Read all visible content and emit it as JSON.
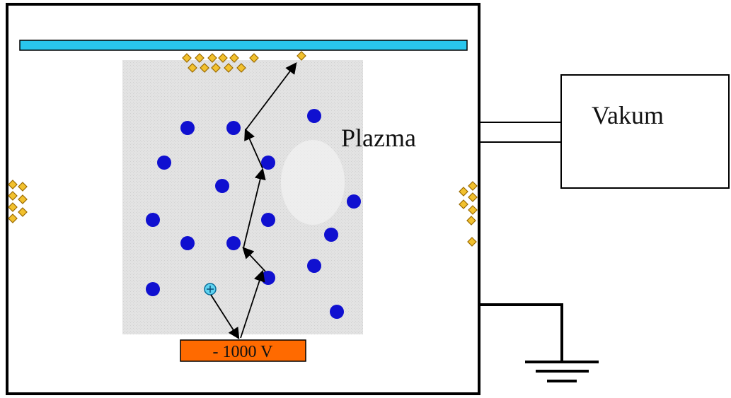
{
  "labels": {
    "plasma": "Plazma",
    "vacuum": "Vakum",
    "cathode_voltage": "- 1000 V"
  },
  "colors": {
    "chamber_border": "#000000",
    "substrate": "#29c6ee",
    "plasma_region": "#e0e0e0",
    "ion": "#1010d0",
    "sputtered_atom": "#f2c12e",
    "sputtered_atom_outline": "#9a6a00",
    "incident_ion": "#5fd3f0",
    "cathode": "#ff6a00",
    "arrow": "#000000"
  },
  "icons": {
    "ion": "blue-circle",
    "sputtered_atom": "yellow-diamond",
    "incident_ion": "cyan-plus-circle",
    "ground": "ground-symbol"
  }
}
